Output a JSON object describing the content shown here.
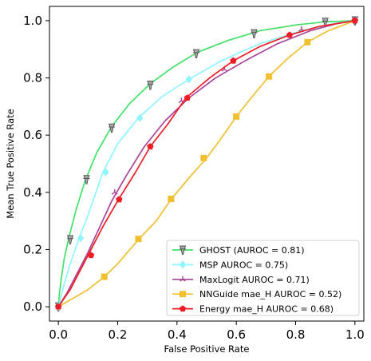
{
  "chart_data": {
    "type": "line",
    "xlabel": "False Positive Rate",
    "ylabel": "Mean True Positive Rate",
    "xlim": [
      -0.03,
      1.03
    ],
    "ylim": [
      -0.05,
      1.05
    ],
    "x_ticks": [
      "0.0",
      "0.2",
      "0.4",
      "0.6",
      "0.8",
      "1.0"
    ],
    "y_ticks": [
      "0.0",
      "0.2",
      "0.4",
      "0.6",
      "0.8",
      "1.0"
    ],
    "grid": false,
    "legend_position": "lower-right",
    "series": [
      {
        "name": "GHOST (AUROC = 0.81)",
        "color": "#44e06a",
        "marker": "pin",
        "marker_color": "#a8a8a8",
        "curve": [
          [
            0,
            0
          ],
          [
            0.004,
            0.05
          ],
          [
            0.01,
            0.1
          ],
          [
            0.02,
            0.17
          ],
          [
            0.035,
            0.24
          ],
          [
            0.06,
            0.34
          ],
          [
            0.09,
            0.44
          ],
          [
            0.13,
            0.54
          ],
          [
            0.18,
            0.63
          ],
          [
            0.24,
            0.71
          ],
          [
            0.31,
            0.78
          ],
          [
            0.39,
            0.84
          ],
          [
            0.47,
            0.89
          ],
          [
            0.57,
            0.93
          ],
          [
            0.68,
            0.965
          ],
          [
            0.8,
            0.985
          ],
          [
            0.9,
            0.996
          ],
          [
            1,
            1
          ]
        ],
        "markers": [
          [
            0,
            0
          ],
          [
            0.04,
            0.235
          ],
          [
            0.095,
            0.445
          ],
          [
            0.18,
            0.625
          ],
          [
            0.31,
            0.775
          ],
          [
            0.465,
            0.885
          ],
          [
            0.66,
            0.955
          ],
          [
            0.9,
            0.995
          ],
          [
            1,
            1
          ]
        ]
      },
      {
        "name": "MSP  AUROC = 0.75)",
        "color": "#8ff5ff",
        "marker": "diamond",
        "marker_color": "#8ff5ff",
        "curve": [
          [
            0,
            0
          ],
          [
            0.02,
            0.08
          ],
          [
            0.04,
            0.15
          ],
          [
            0.07,
            0.24
          ],
          [
            0.1,
            0.32
          ],
          [
            0.15,
            0.47
          ],
          [
            0.2,
            0.57
          ],
          [
            0.27,
            0.66
          ],
          [
            0.35,
            0.735
          ],
          [
            0.44,
            0.795
          ],
          [
            0.55,
            0.86
          ],
          [
            0.68,
            0.92
          ],
          [
            0.82,
            0.965
          ],
          [
            0.93,
            0.99
          ],
          [
            1,
            1
          ]
        ],
        "markers": [
          [
            0,
            0
          ],
          [
            0.075,
            0.24
          ],
          [
            0.16,
            0.47
          ],
          [
            0.275,
            0.66
          ],
          [
            0.44,
            0.795
          ]
        ]
      },
      {
        "name": "MaxLogit  AUROC = 0.71)",
        "color": "#aa4499",
        "marker": "tri",
        "marker_color": "#aa4499",
        "curve": [
          [
            0,
            0
          ],
          [
            0.03,
            0.05
          ],
          [
            0.06,
            0.11
          ],
          [
            0.1,
            0.19
          ],
          [
            0.14,
            0.28
          ],
          [
            0.18,
            0.37
          ],
          [
            0.23,
            0.46
          ],
          [
            0.29,
            0.56
          ],
          [
            0.36,
            0.65
          ],
          [
            0.44,
            0.73
          ],
          [
            0.53,
            0.8
          ],
          [
            0.63,
            0.86
          ],
          [
            0.74,
            0.92
          ],
          [
            0.85,
            0.965
          ],
          [
            0.94,
            0.99
          ],
          [
            1,
            1
          ]
        ],
        "markers": [
          [
            0,
            0
          ],
          [
            0.19,
            0.4
          ],
          [
            0.415,
            0.72
          ],
          [
            0.56,
            0.83
          ],
          [
            0.82,
            0.97
          ],
          [
            0.995,
            1
          ]
        ]
      },
      {
        "name": "NNGuide mae_H  AUROC = 0.52)",
        "color": "#f0c030",
        "marker": "square",
        "marker_color": "#f0c030",
        "curve": [
          [
            0,
            0
          ],
          [
            0.05,
            0.03
          ],
          [
            0.1,
            0.06
          ],
          [
            0.155,
            0.105
          ],
          [
            0.2,
            0.15
          ],
          [
            0.27,
            0.235
          ],
          [
            0.33,
            0.3
          ],
          [
            0.38,
            0.375
          ],
          [
            0.44,
            0.45
          ],
          [
            0.5,
            0.52
          ],
          [
            0.55,
            0.59
          ],
          [
            0.6,
            0.665
          ],
          [
            0.65,
            0.73
          ],
          [
            0.71,
            0.805
          ],
          [
            0.77,
            0.865
          ],
          [
            0.84,
            0.925
          ],
          [
            0.91,
            0.965
          ],
          [
            1,
            1
          ]
        ],
        "markers": [
          [
            0.155,
            0.105
          ],
          [
            0.27,
            0.237
          ],
          [
            0.38,
            0.377
          ],
          [
            0.49,
            0.52
          ],
          [
            0.6,
            0.665
          ],
          [
            0.71,
            0.805
          ],
          [
            0.84,
            0.925
          ]
        ]
      },
      {
        "name": "Energy mae_H  AUROC = 0.68)",
        "color": "#ee1c25",
        "marker": "pentagon",
        "marker_color": "#ee1c25",
        "curve": [
          [
            0,
            0
          ],
          [
            0.04,
            0.06
          ],
          [
            0.07,
            0.12
          ],
          [
            0.11,
            0.2
          ],
          [
            0.15,
            0.28
          ],
          [
            0.2,
            0.37
          ],
          [
            0.26,
            0.47
          ],
          [
            0.31,
            0.56
          ],
          [
            0.37,
            0.64
          ],
          [
            0.43,
            0.73
          ],
          [
            0.51,
            0.8
          ],
          [
            0.59,
            0.86
          ],
          [
            0.68,
            0.91
          ],
          [
            0.78,
            0.95
          ],
          [
            0.88,
            0.98
          ],
          [
            1,
            1
          ]
        ],
        "markers": [
          [
            0,
            0
          ],
          [
            0.11,
            0.18
          ],
          [
            0.205,
            0.375
          ],
          [
            0.31,
            0.56
          ],
          [
            0.435,
            0.73
          ],
          [
            0.59,
            0.86
          ],
          [
            0.78,
            0.95
          ],
          [
            1,
            1
          ]
        ]
      }
    ]
  }
}
